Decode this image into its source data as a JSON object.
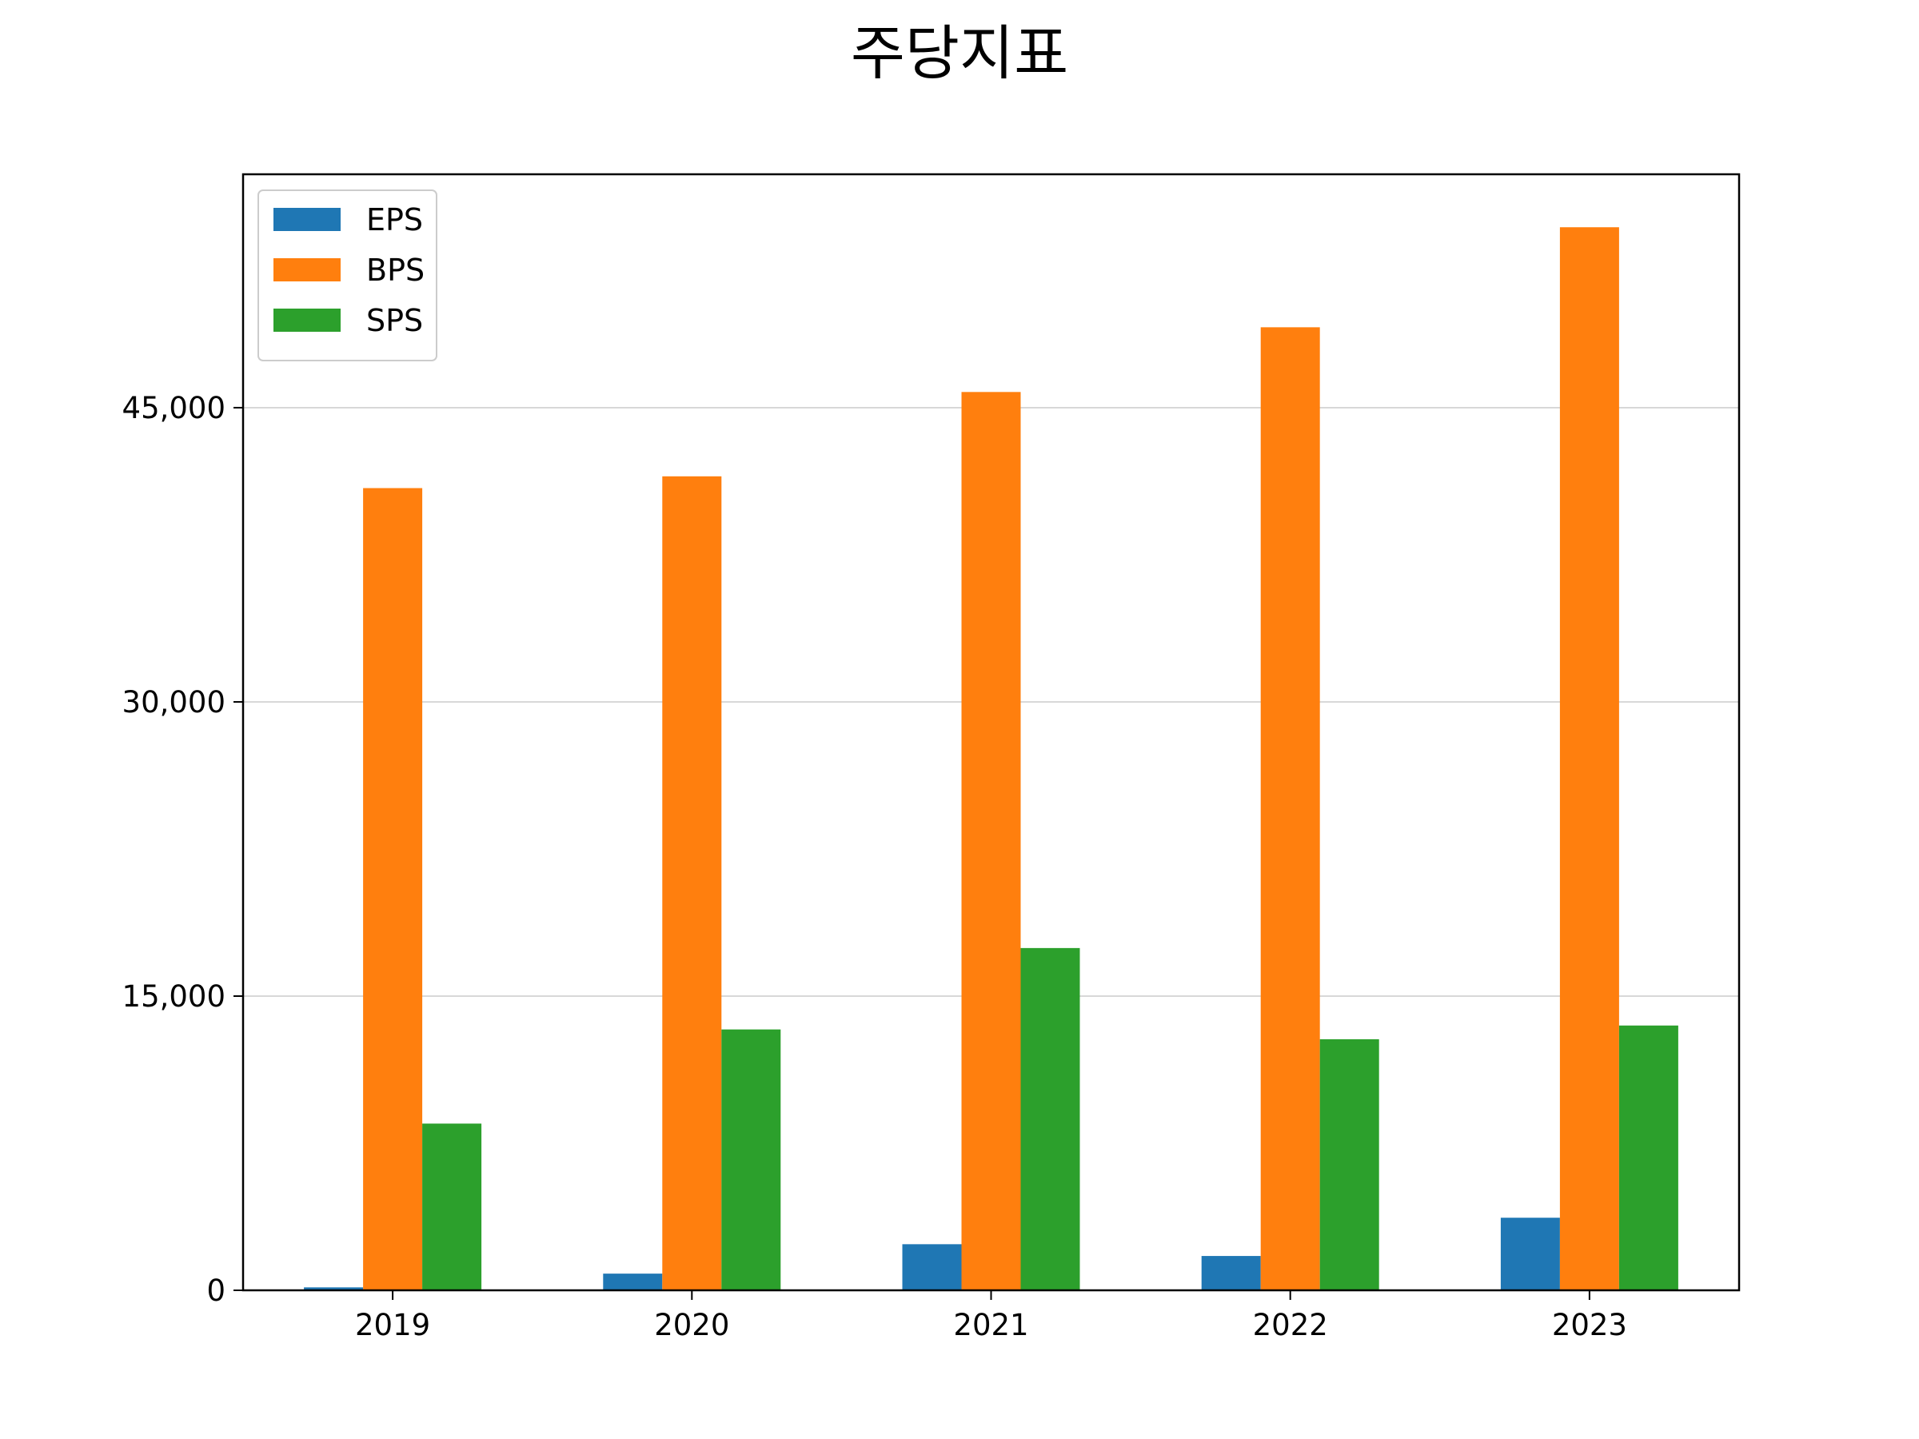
{
  "chart_data": {
    "type": "bar",
    "title": "주당지표",
    "xlabel": "",
    "ylabel": "",
    "categories": [
      "2019",
      "2020",
      "2021",
      "2022",
      "2023"
    ],
    "series": [
      {
        "name": "EPS",
        "color": "#1f77b4",
        "values": [
          150,
          850,
          2350,
          1750,
          3700
        ]
      },
      {
        "name": "BPS",
        "color": "#ff7f0e",
        "values": [
          40900,
          41500,
          45800,
          49100,
          54200
        ]
      },
      {
        "name": "SPS",
        "color": "#2ca02c",
        "values": [
          8500,
          13300,
          17450,
          12800,
          13500
        ]
      }
    ],
    "ylim": [
      0,
      56900
    ],
    "yticks": [
      0,
      15000,
      30000,
      45000
    ],
    "ytick_labels": [
      "0",
      "15,000",
      "30,000",
      "45,000"
    ],
    "grid": "y",
    "legend_position": "top-left"
  }
}
